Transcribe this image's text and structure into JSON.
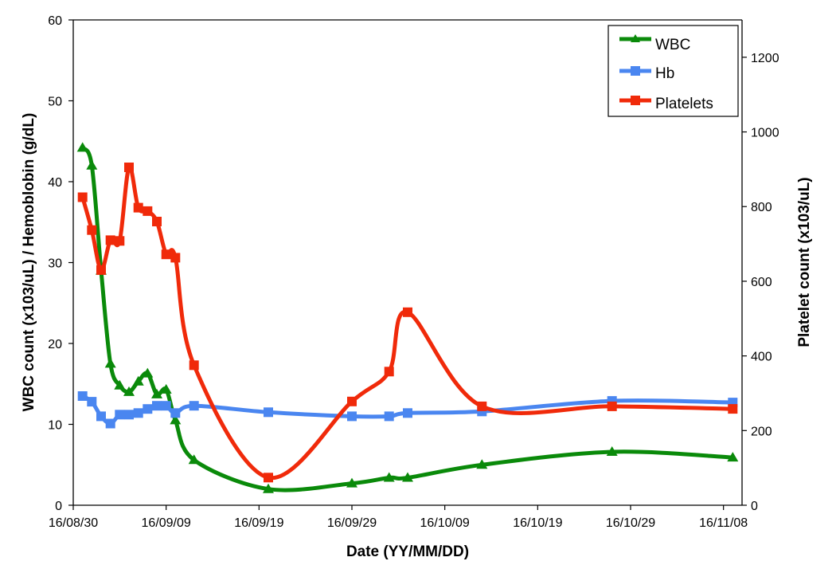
{
  "chart_data": {
    "type": "line",
    "x_scale": "date",
    "xlabel": "Date (YY/MM/DD)",
    "ylabel_left": "WBC count (x103/uL) / Hemoblobin (g/dL)",
    "ylabel_right": "Platelet count (x103/uL)",
    "ylim_left": [
      0,
      60
    ],
    "ylim_right": [
      0,
      1300
    ],
    "x_range": [
      "2016-08-30",
      "2016-11-10"
    ],
    "x_ticks": [
      {
        "date": "2016-08-30",
        "label": "16/08/30"
      },
      {
        "date": "2016-09-09",
        "label": "16/09/09"
      },
      {
        "date": "2016-09-19",
        "label": "16/09/19"
      },
      {
        "date": "2016-09-29",
        "label": "16/09/29"
      },
      {
        "date": "2016-10-09",
        "label": "16/10/09"
      },
      {
        "date": "2016-10-19",
        "label": "16/10/19"
      },
      {
        "date": "2016-10-29",
        "label": "16/10/29"
      },
      {
        "date": "2016-11-08",
        "label": "16/11/08"
      }
    ],
    "y_ticks_left": [
      "0",
      "10",
      "20",
      "30",
      "40",
      "50",
      "60"
    ],
    "y_ticks_right": [
      "0",
      "200",
      "400",
      "600",
      "800",
      "1000",
      "1200"
    ],
    "y_tick_values_left": [
      0,
      10,
      20,
      30,
      40,
      50,
      60
    ],
    "y_tick_values_right": [
      0,
      200,
      400,
      600,
      800,
      1000,
      1200
    ],
    "grid": false,
    "legend_position": "top-right",
    "series": [
      {
        "name": "WBC",
        "axis": "left",
        "marker": "triangle",
        "color": "#0a8a0a",
        "points": [
          [
            "2016-08-31",
            44.2
          ],
          [
            "2016-09-01",
            42.0
          ],
          [
            "2016-09-02",
            29.0
          ],
          [
            "2016-09-03",
            17.5
          ],
          [
            "2016-09-04",
            14.8
          ],
          [
            "2016-09-05",
            14.0
          ],
          [
            "2016-09-06",
            15.3
          ],
          [
            "2016-09-07",
            16.3
          ],
          [
            "2016-09-08",
            13.7
          ],
          [
            "2016-09-09",
            14.3
          ],
          [
            "2016-09-10",
            10.5
          ],
          [
            "2016-09-12",
            5.6
          ],
          [
            "2016-09-20",
            2.0
          ],
          [
            "2016-09-29",
            2.7
          ],
          [
            "2016-10-03",
            3.4
          ],
          [
            "2016-10-05",
            3.4
          ],
          [
            "2016-10-13",
            5.0
          ],
          [
            "2016-10-27",
            6.6
          ],
          [
            "2016-11-09",
            5.9
          ]
        ]
      },
      {
        "name": "Hb",
        "axis": "left",
        "marker": "square",
        "color": "#4a86f0",
        "points": [
          [
            "2016-08-31",
            13.5
          ],
          [
            "2016-09-01",
            12.8
          ],
          [
            "2016-09-02",
            11.0
          ],
          [
            "2016-09-03",
            10.1
          ],
          [
            "2016-09-04",
            11.2
          ],
          [
            "2016-09-05",
            11.2
          ],
          [
            "2016-09-06",
            11.4
          ],
          [
            "2016-09-07",
            11.9
          ],
          [
            "2016-09-08",
            12.3
          ],
          [
            "2016-09-09",
            12.3
          ],
          [
            "2016-09-10",
            11.4
          ],
          [
            "2016-09-12",
            12.3
          ],
          [
            "2016-09-20",
            11.5
          ],
          [
            "2016-09-29",
            11.0
          ],
          [
            "2016-10-03",
            11.0
          ],
          [
            "2016-10-05",
            11.4
          ],
          [
            "2016-10-13",
            11.6
          ],
          [
            "2016-10-27",
            12.9
          ],
          [
            "2016-11-09",
            12.7
          ]
        ]
      },
      {
        "name": "Platelets",
        "axis": "right",
        "marker": "square",
        "color": "#f02a0a",
        "points": [
          [
            "2016-08-31",
            825
          ],
          [
            "2016-09-01",
            737
          ],
          [
            "2016-09-02",
            630
          ],
          [
            "2016-09-03",
            710
          ],
          [
            "2016-09-04",
            708
          ],
          [
            "2016-09-05",
            905
          ],
          [
            "2016-09-06",
            797
          ],
          [
            "2016-09-07",
            788
          ],
          [
            "2016-09-08",
            760
          ],
          [
            "2016-09-09",
            672
          ],
          [
            "2016-09-10",
            663
          ],
          [
            "2016-09-12",
            375
          ],
          [
            "2016-09-20",
            74
          ],
          [
            "2016-09-29",
            278
          ],
          [
            "2016-10-03",
            358
          ],
          [
            "2016-10-05",
            517
          ],
          [
            "2016-10-13",
            265
          ],
          [
            "2016-10-27",
            265
          ],
          [
            "2016-11-09",
            258
          ]
        ]
      }
    ]
  }
}
